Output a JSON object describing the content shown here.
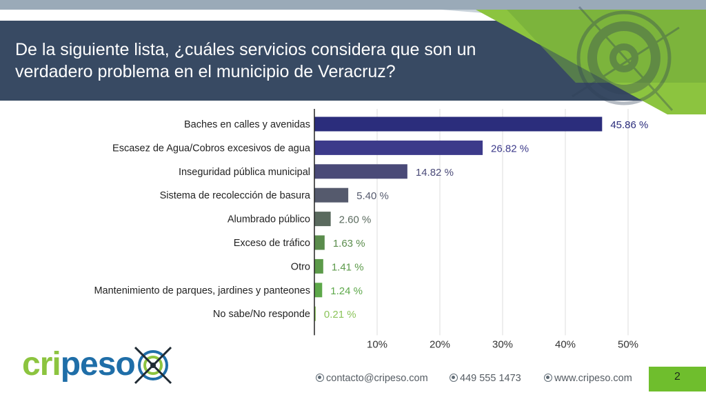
{
  "slide": {
    "title": "De la siguiente lista, ¿cuáles servicios considera que son un verdadero problema en el municipio de Veracruz?",
    "page_number": "2"
  },
  "brand": {
    "logo_text": "cripeso",
    "colors": {
      "green": "#8cc43f",
      "blue": "#1f6ea8",
      "navy": "#384a63"
    }
  },
  "footer": {
    "email": "contacto@cripeso.com",
    "phone": "449 555 1473",
    "website": "www.cripeso.com"
  },
  "chart_data": {
    "type": "bar",
    "orientation": "horizontal",
    "categories": [
      "Baches en calles y avenidas",
      "Escasez de Agua/Cobros excesivos de agua",
      "Inseguridad pública municipal",
      "Sistema de recolección de basura",
      "Alumbrado público",
      "Exceso de tráfico",
      "Otro",
      "Mantenimiento de parques, jardines y panteones",
      "No sabe/No responde"
    ],
    "values": [
      45.86,
      26.82,
      14.82,
      5.4,
      2.6,
      1.63,
      1.41,
      1.24,
      0.21
    ],
    "value_labels": [
      "45.86 %",
      "26.82 %",
      "14.82 %",
      "5.40 %",
      "2.60 %",
      "1.63 %",
      "1.41 %",
      "1.24 %",
      "0.21 %"
    ],
    "bar_colors": [
      "#2b2d7c",
      "#3c3a8a",
      "#4a4a78",
      "#555a6d",
      "#5a6a5e",
      "#5a8c4c",
      "#5c9a4a",
      "#5da84a",
      "#8bc45a"
    ],
    "xlim": [
      0,
      55
    ],
    "xticks": [
      10,
      20,
      30,
      40,
      50
    ],
    "xtick_labels": [
      "10%",
      "20%",
      "30%",
      "40%",
      "50%"
    ],
    "grid": true,
    "legend": false
  }
}
